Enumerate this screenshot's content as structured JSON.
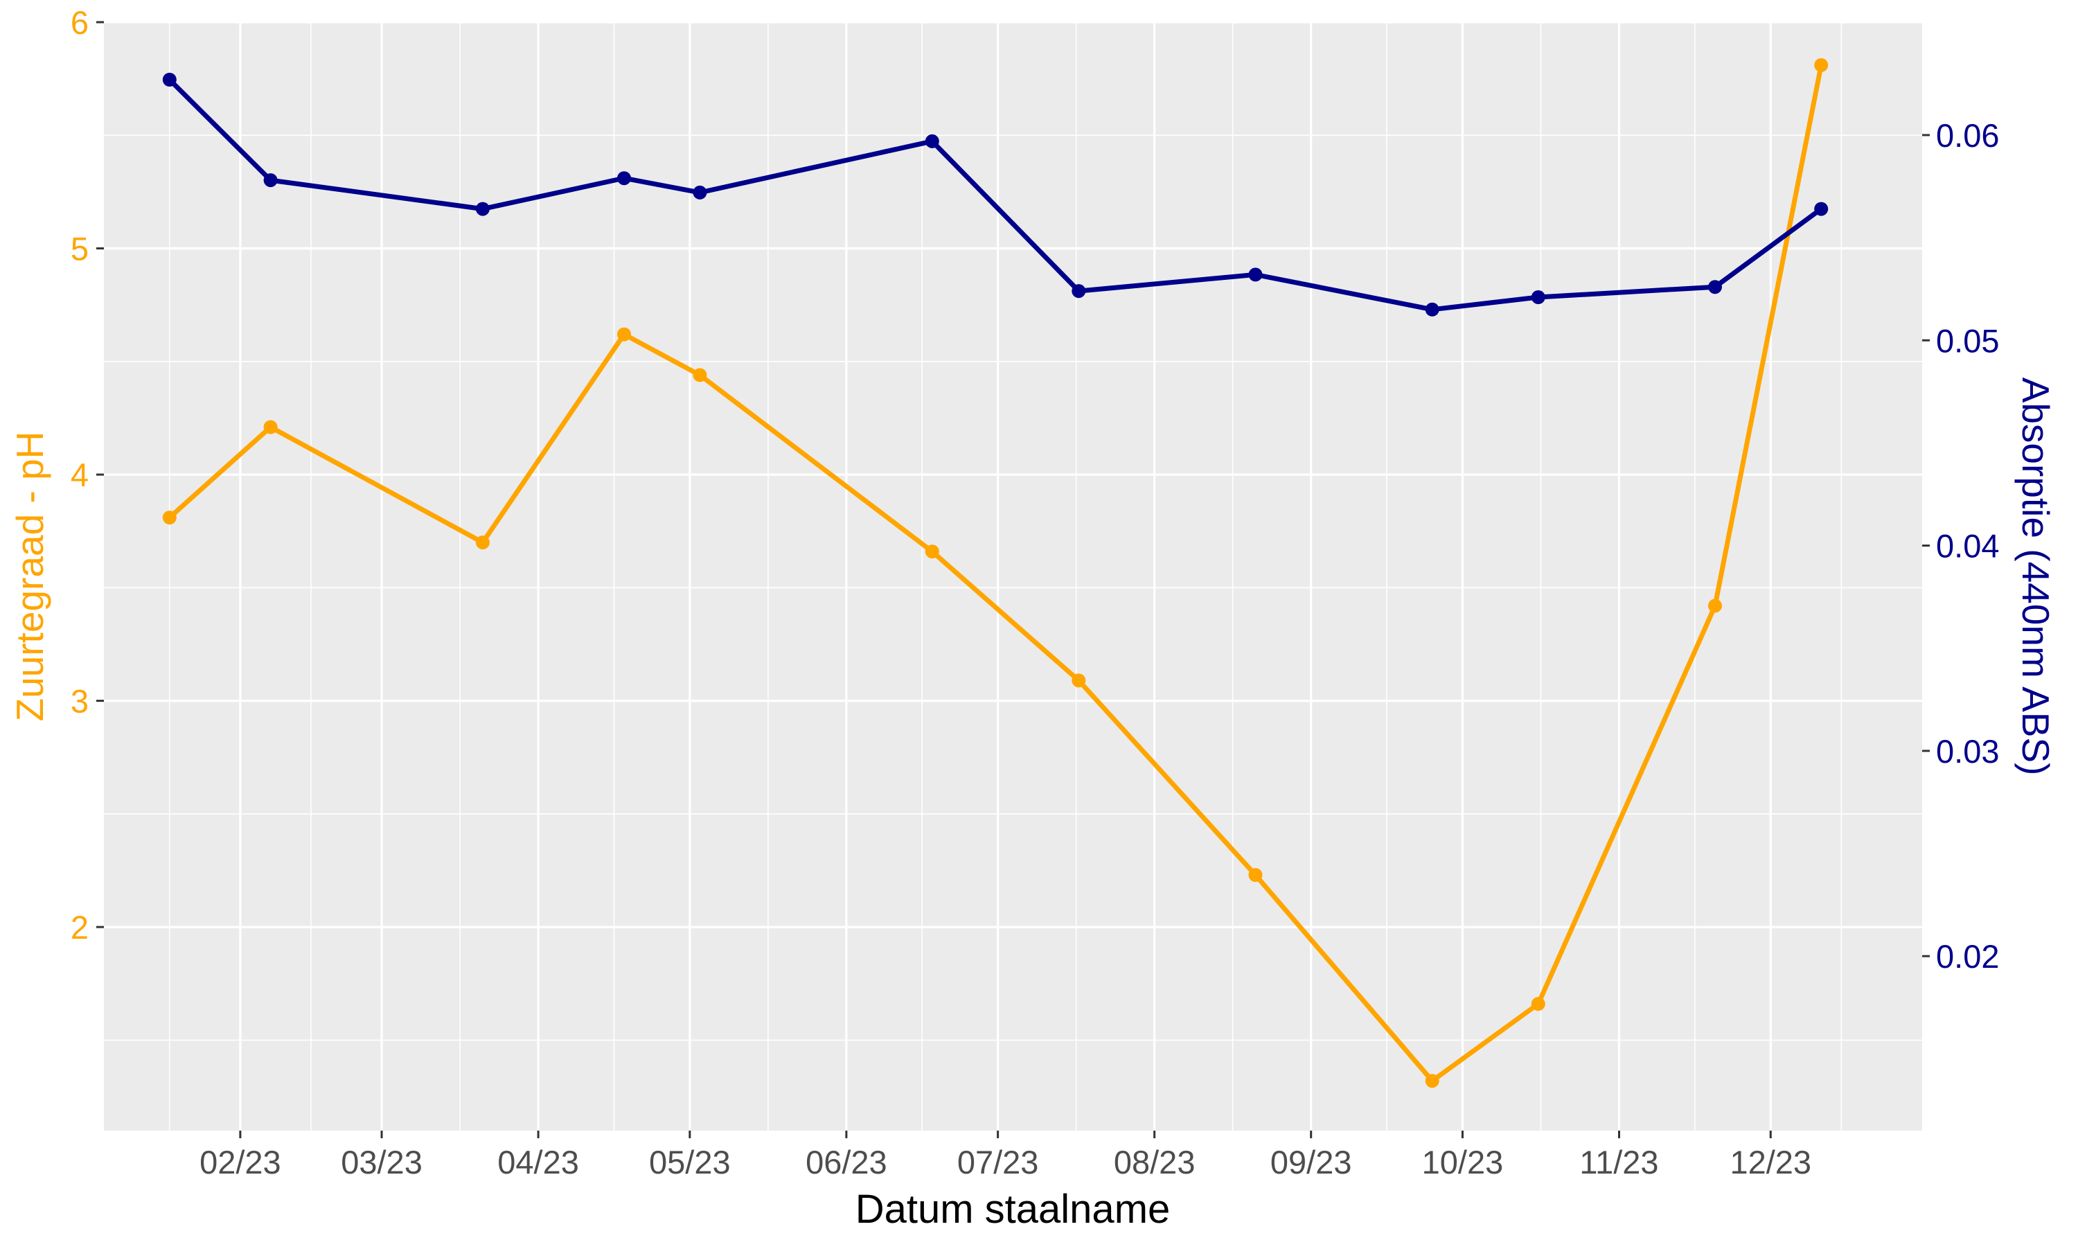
{
  "chart_data": {
    "type": "line",
    "xlabel": "Datum staalname",
    "ylabel_left": "Zuurtegraad - pH",
    "ylabel_right": "Absorptie (440nm ABS)",
    "x_tick_labels": [
      "02/23",
      "03/23",
      "04/23",
      "05/23",
      "06/23",
      "07/23",
      "08/23",
      "09/23",
      "10/23",
      "11/23",
      "12/23"
    ],
    "x_ticks": [
      "2023-02-01",
      "2023-03-01",
      "2023-04-01",
      "2023-05-01",
      "2023-06-01",
      "2023-07-01",
      "2023-08-01",
      "2023-09-01",
      "2023-10-01",
      "2023-11-01",
      "2023-12-01"
    ],
    "y_left_ticks": [
      2,
      3,
      4,
      5,
      6
    ],
    "y_left_lim": [
      1.1,
      6.0
    ],
    "y_right_ticks": [
      0.02,
      0.03,
      0.04,
      0.05,
      0.06
    ],
    "y_right_lim": [
      0.0115,
      0.0655
    ],
    "x_range": [
      "2023-01-05",
      "2023-12-31"
    ],
    "grid": true,
    "series": [
      {
        "axis": "left",
        "color": "#FFA500",
        "x": [
          "2023-01-18",
          "2023-02-07",
          "2023-03-21",
          "2023-04-18",
          "2023-05-03",
          "2023-06-18",
          "2023-07-17",
          "2023-08-21",
          "2023-09-25",
          "2023-10-16",
          "2023-11-20",
          "2023-12-11"
        ],
        "y": [
          3.81,
          4.21,
          3.7,
          4.62,
          4.44,
          3.66,
          3.09,
          2.23,
          1.32,
          1.66,
          3.42,
          5.81
        ]
      },
      {
        "axis": "right",
        "color": "#00008B",
        "x": [
          "2023-01-18",
          "2023-02-07",
          "2023-03-21",
          "2023-04-18",
          "2023-05-03",
          "2023-06-18",
          "2023-07-17",
          "2023-08-21",
          "2023-09-25",
          "2023-10-16",
          "2023-11-20",
          "2023-12-11"
        ],
        "y": [
          0.0627,
          0.0578,
          0.0564,
          0.0579,
          0.0572,
          0.0597,
          0.0524,
          0.0532,
          0.0515,
          0.0521,
          0.0526,
          0.0564
        ]
      }
    ]
  }
}
